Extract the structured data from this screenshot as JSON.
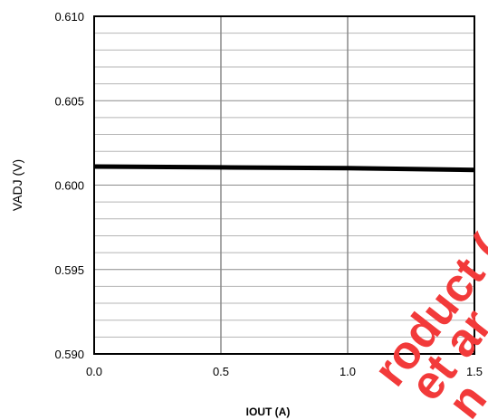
{
  "chart_data": {
    "type": "line",
    "xlabel": "IOUT (A)",
    "ylabel": "VADJ (V)",
    "xlim": [
      0,
      1.5
    ],
    "ylim": [
      0.59,
      0.61
    ],
    "x_ticks": [
      "0.0",
      "0.5",
      "1.0",
      "1.5"
    ],
    "y_ticks": [
      "0.590",
      "0.595",
      "0.600",
      "0.605",
      "0.610"
    ],
    "x_tick_values": [
      0,
      0.5,
      1.0,
      1.5
    ],
    "y_tick_values": [
      0.59,
      0.595,
      0.6,
      0.605,
      0.61
    ],
    "x_grid_step": 0.5,
    "y_grid_step": 0.001,
    "grid": true,
    "series": [
      {
        "x": [
          0.0,
          0.5,
          1.0,
          1.5
        ],
        "y": [
          0.6011,
          0.60105,
          0.601,
          0.6009
        ],
        "color": "#000000"
      }
    ]
  },
  "watermark": {
    "line1": "roduct (or p",
    "line2": "et ar",
    "line3": "n",
    "color": "#f23a3a"
  }
}
